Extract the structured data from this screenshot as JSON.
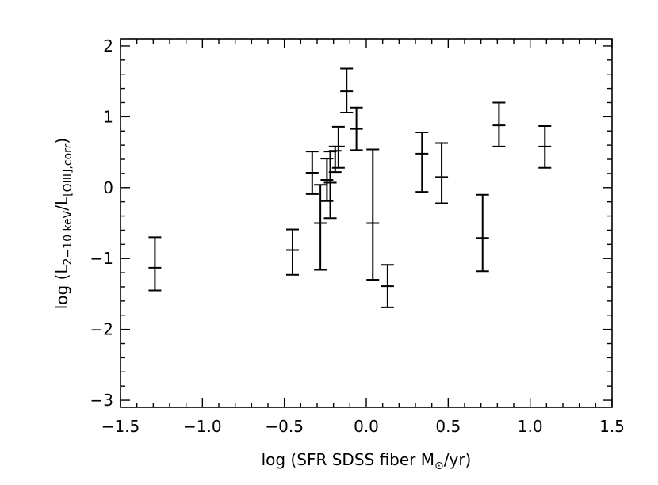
{
  "chart_data": {
    "type": "scatter",
    "style": "error-bars",
    "title": "",
    "xlabel": {
      "prefix": "log (SFR SDSS fiber M",
      "sub": "⊙",
      "suffix": "/yr)"
    },
    "ylabel": {
      "prefix": "log (L",
      "sub1": "2−10 keV",
      "mid": "/L",
      "sub2": "[OIII],corr",
      "suffix": ")"
    },
    "xlim": [
      -1.5,
      1.5
    ],
    "ylim": [
      -3.1,
      2.1
    ],
    "x_ticks": [
      -1.5,
      -1.0,
      -0.5,
      0.0,
      0.5,
      1.0,
      1.5
    ],
    "x_tick_labels": [
      "−1.5",
      "−1.0",
      "−0.5",
      "0.0",
      "0.5",
      "1.0",
      "1.5"
    ],
    "y_ticks": [
      -3,
      -2,
      -1,
      0,
      1,
      2
    ],
    "y_tick_labels": [
      "−3",
      "−2",
      "−1",
      "0",
      "1",
      "2"
    ],
    "points": [
      {
        "x": -1.29,
        "y": -1.13,
        "ylo": -1.45,
        "yhi": -0.7
      },
      {
        "x": -0.45,
        "y": -0.88,
        "ylo": -1.23,
        "yhi": -0.59
      },
      {
        "x": -0.33,
        "y": 0.21,
        "ylo": -0.09,
        "yhi": 0.51
      },
      {
        "x": -0.28,
        "y": -0.5,
        "ylo": -1.16,
        "yhi": 0.04
      },
      {
        "x": -0.24,
        "y": 0.11,
        "ylo": -0.19,
        "yhi": 0.41
      },
      {
        "x": -0.22,
        "y": 0.07,
        "ylo": -0.43,
        "yhi": 0.51
      },
      {
        "x": -0.19,
        "y": 0.52,
        "ylo": 0.22,
        "yhi": 0.58
      },
      {
        "x": -0.17,
        "y": 0.58,
        "ylo": 0.28,
        "yhi": 0.86
      },
      {
        "x": -0.12,
        "y": 1.36,
        "ylo": 1.06,
        "yhi": 1.68
      },
      {
        "x": -0.06,
        "y": 0.83,
        "ylo": 0.53,
        "yhi": 1.13
      },
      {
        "x": 0.04,
        "y": -0.5,
        "ylo": -1.3,
        "yhi": 0.54
      },
      {
        "x": 0.13,
        "y": -1.39,
        "ylo": -1.69,
        "yhi": -1.09
      },
      {
        "x": 0.34,
        "y": 0.48,
        "ylo": -0.06,
        "yhi": 0.78
      },
      {
        "x": 0.46,
        "y": 0.15,
        "ylo": -0.22,
        "yhi": 0.63
      },
      {
        "x": 0.71,
        "y": -0.71,
        "ylo": -1.18,
        "yhi": -0.1
      },
      {
        "x": 0.81,
        "y": 0.88,
        "ylo": 0.58,
        "yhi": 1.2
      },
      {
        "x": 1.09,
        "y": 0.58,
        "ylo": 0.28,
        "yhi": 0.87
      }
    ]
  }
}
